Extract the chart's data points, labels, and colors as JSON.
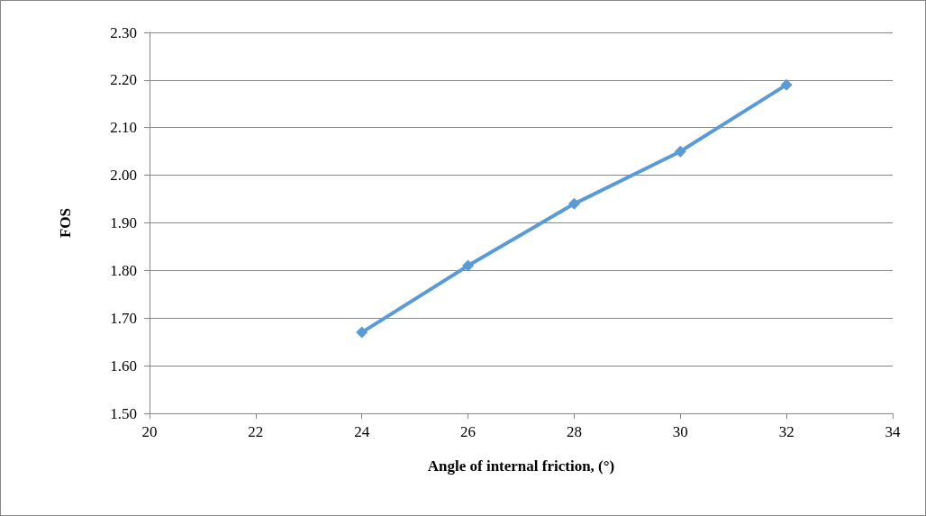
{
  "chart_data": {
    "type": "line",
    "xlabel": "Angle of internal friction, (°)",
    "ylabel": "FOS",
    "x": [
      24,
      26,
      28,
      30,
      32
    ],
    "series": [
      {
        "color": "#5b9bd5",
        "values": [
          1.67,
          1.81,
          1.94,
          2.05,
          2.19
        ]
      }
    ],
    "xlim": [
      20,
      34
    ],
    "xticks": [
      20,
      22,
      24,
      26,
      28,
      30,
      32,
      34
    ],
    "ylim": [
      1.5,
      2.3
    ],
    "yticks": [
      {
        "value": 1.5,
        "label": "1.50"
      },
      {
        "value": 1.6,
        "label": "1.60"
      },
      {
        "value": 1.7,
        "label": "1.70"
      },
      {
        "value": 1.8,
        "label": "1.80"
      },
      {
        "value": 1.9,
        "label": "1.90"
      },
      {
        "value": 2.0,
        "label": "2.00"
      },
      {
        "value": 2.1,
        "label": "2.10"
      },
      {
        "value": 2.2,
        "label": "2.20"
      },
      {
        "value": 2.3,
        "label": "2.30"
      }
    ],
    "grid": "y",
    "marker": "diamond",
    "line_style": "solid"
  }
}
